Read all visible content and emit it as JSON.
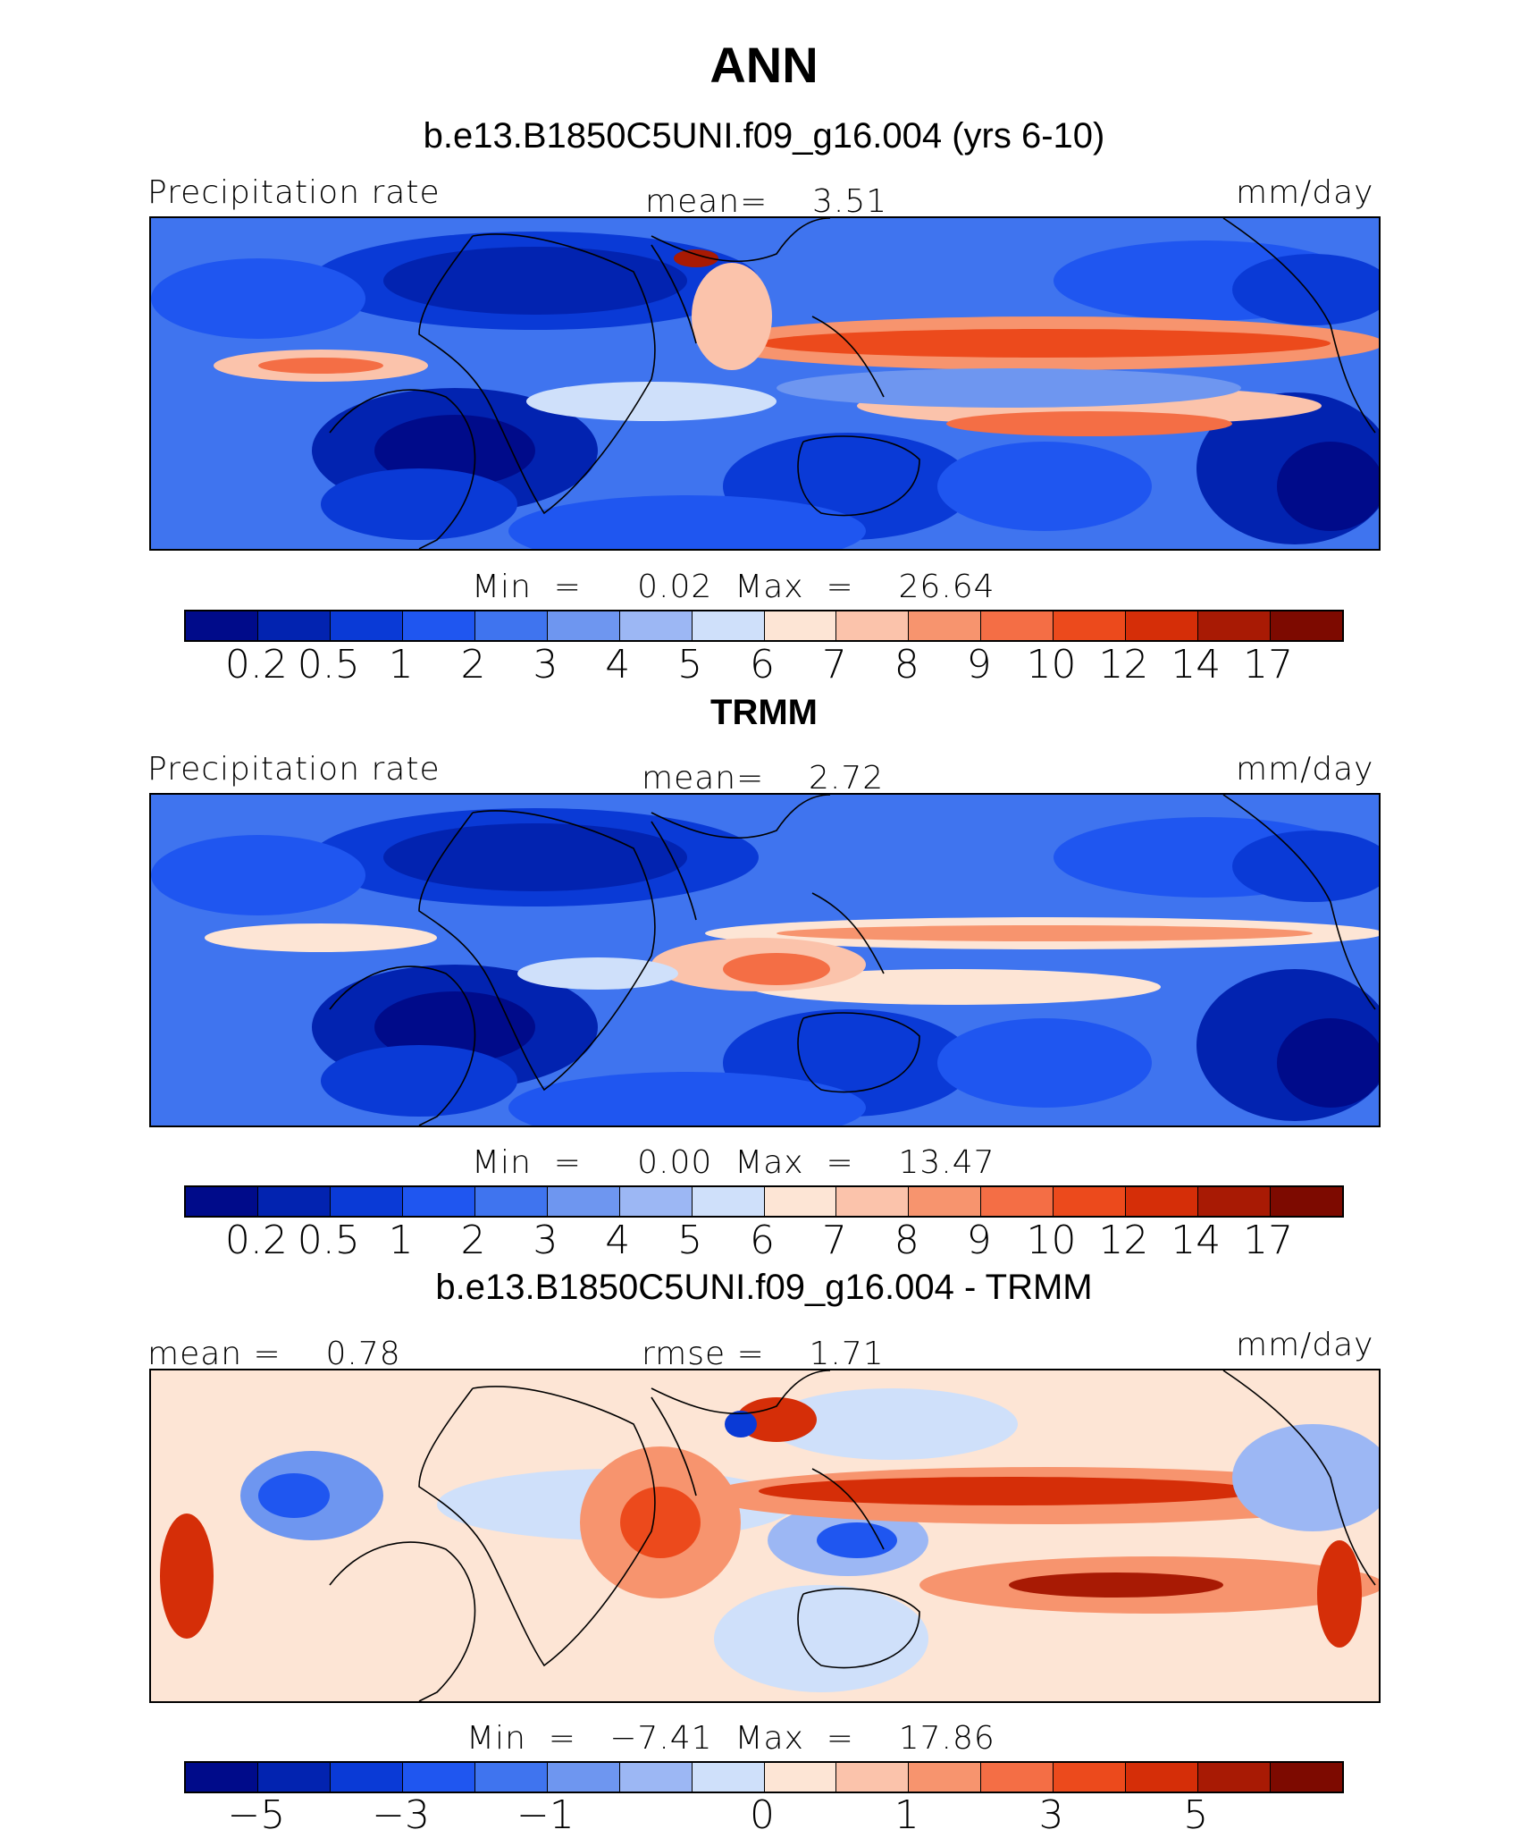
{
  "title": "ANN",
  "panels": [
    {
      "subtitle": "b.e13.B1850C5UNI.f09_g16.004 (yrs 6-10)",
      "left_label": "Precipitation rate",
      "center_label": "mean=    3.51",
      "right_label": "mm/day",
      "minmax": "Min  =     0.02  Max  =    26.64",
      "kind": "model",
      "ticks": [
        "0.2",
        "0.5",
        "1",
        "2",
        "3",
        "4",
        "5",
        "6",
        "7",
        "8",
        "9",
        "10",
        "12",
        "14",
        "17"
      ]
    },
    {
      "subtitle": "TRMM",
      "left_label": "Precipitation rate",
      "center_label": "mean=    2.72",
      "right_label": "mm/day",
      "minmax": "Min  =     0.00  Max  =    13.47",
      "kind": "obs",
      "ticks": [
        "0.2",
        "0.5",
        "1",
        "2",
        "3",
        "4",
        "5",
        "6",
        "7",
        "8",
        "9",
        "10",
        "12",
        "14",
        "17"
      ]
    },
    {
      "subtitle": "b.e13.B1850C5UNI.f09_g16.004 - TRMM",
      "left_label": "mean =    0.78",
      "center_label": "rmse =    1.71",
      "right_label": "mm/day",
      "minmax": "Min  =   −7.41  Max  =    17.86",
      "kind": "diff",
      "ticks": [
        "−5",
        "−3",
        "−1",
        "0",
        "1",
        "3",
        "5"
      ]
    }
  ],
  "colormap": [
    "#000b8a",
    "#0223b0",
    "#0a3ad6",
    "#1f56f0",
    "#3f74ef",
    "#6e96f0",
    "#9cb7f4",
    "#cfe0fa",
    "#fde5d5",
    "#fbc3ab",
    "#f7946e",
    "#f46e45",
    "#ec4a1c",
    "#d52e08",
    "#a81a04",
    "#7d0a00"
  ]
}
